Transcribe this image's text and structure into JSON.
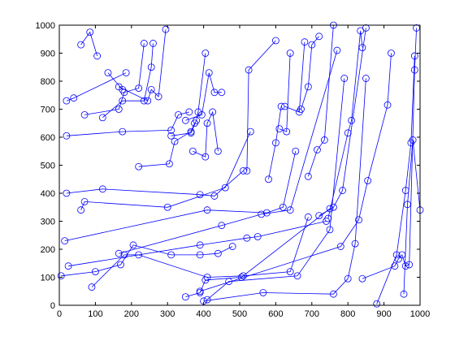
{
  "chart_data": {
    "type": "line",
    "title": "",
    "xlabel": "",
    "ylabel": "",
    "xlim": [
      0,
      1000
    ],
    "ylim": [
      0,
      1000
    ],
    "xticks": [
      "0",
      "100",
      "200",
      "300",
      "400",
      "500",
      "600",
      "700",
      "800",
      "900",
      "1000"
    ],
    "yticks": [
      "0",
      "100",
      "200",
      "300",
      "400",
      "500",
      "600",
      "700",
      "800",
      "900",
      "1000"
    ],
    "grid": false,
    "legend": "none",
    "marker": "open-circle",
    "color": "#0000ff",
    "series": [
      {
        "x": [
          60,
          85,
          105
        ],
        "y": [
          930,
          975,
          890
        ]
      },
      {
        "x": [
          20,
          40,
          185
        ],
        "y": [
          730,
          740,
          830
        ]
      },
      {
        "x": [
          70,
          165,
          180,
          220,
          235
        ],
        "y": [
          680,
          700,
          760,
          775,
          935
        ]
      },
      {
        "x": [
          135,
          175
        ],
        "y": [
          830,
          770
        ]
      },
      {
        "x": [
          120,
          175,
          235,
          255,
          260
        ],
        "y": [
          670,
          730,
          730,
          850,
          935
        ]
      },
      {
        "x": [
          165,
          245,
          255,
          275,
          295
        ],
        "y": [
          780,
          730,
          770,
          745,
          985
        ]
      },
      {
        "x": [
          20,
          175,
          310,
          330,
          360
        ],
        "y": [
          605,
          620,
          625,
          680,
          690
        ]
      },
      {
        "x": [
          220,
          305,
          320,
          365,
          375
        ],
        "y": [
          495,
          505,
          585,
          620,
          650
        ]
      },
      {
        "x": [
          310,
          365,
          380,
          385,
          405
        ],
        "y": [
          605,
          615,
          660,
          690,
          900
        ]
      },
      {
        "x": [
          370,
          405,
          410,
          425,
          440
        ],
        "y": [
          550,
          530,
          650,
          690,
          550
        ]
      },
      {
        "x": [
          350,
          395,
          415,
          430,
          450
        ],
        "y": [
          660,
          680,
          830,
          760,
          760
        ]
      },
      {
        "x": [
          520,
          525,
          600
        ],
        "y": [
          480,
          840,
          945
        ]
      },
      {
        "x": [
          20,
          120,
          390,
          430,
          510
        ],
        "y": [
          400,
          415,
          395,
          390,
          480
        ]
      },
      {
        "x": [
          580,
          600,
          615
        ],
        "y": [
          450,
          580,
          710
        ]
      },
      {
        "x": [
          60,
          70,
          300,
          460,
          530
        ],
        "y": [
          340,
          370,
          350,
          420,
          620
        ]
      },
      {
        "x": [
          610,
          630,
          640
        ],
        "y": [
          630,
          620,
          900
        ]
      },
      {
        "x": [
          625,
          665,
          680
        ],
        "y": [
          710,
          690,
          940
        ]
      },
      {
        "x": [
          15,
          410,
          575,
          620,
          655
        ],
        "y": [
          230,
          340,
          330,
          350,
          550
        ]
      },
      {
        "x": [
          670,
          690,
          700,
          720
        ],
        "y": [
          700,
          780,
          930,
          960
        ]
      },
      {
        "x": [
          690,
          715,
          735,
          760
        ],
        "y": [
          460,
          555,
          590,
          1000
        ]
      },
      {
        "x": [
          720,
          760,
          785,
          850
        ],
        "y": [
          320,
          350,
          410,
          990
        ]
      },
      {
        "x": [
          745,
          800,
          810,
          835,
          840
        ],
        "y": [
          310,
          615,
          660,
          980,
          920
        ]
      },
      {
        "x": [
          25,
          390,
          520,
          550,
          740
        ],
        "y": [
          140,
          215,
          240,
          245,
          300
        ]
      },
      {
        "x": [
          165,
          450,
          560,
          640,
          770
        ],
        "y": [
          185,
          285,
          325,
          340,
          910
        ]
      },
      {
        "x": [
          5,
          100,
          170,
          205,
          310,
          390,
          440,
          480
        ],
        "y": [
          105,
          120,
          145,
          215,
          180,
          180,
          185,
          210
        ]
      },
      {
        "x": [
          90,
          180,
          220,
          410,
          510,
          640,
          690
        ],
        "y": [
          65,
          180,
          180,
          100,
          105,
          120,
          315
        ]
      },
      {
        "x": [
          410,
          470,
          660,
          750,
          790
        ],
        "y": [
          20,
          85,
          105,
          270,
          810
        ]
      },
      {
        "x": [
          350,
          390,
          405,
          505,
          750
        ],
        "y": [
          30,
          45,
          90,
          100,
          345
        ]
      },
      {
        "x": [
          400,
          565,
          760,
          800,
          820,
          850
        ],
        "y": [
          15,
          45,
          40,
          95,
          220,
          810
        ]
      },
      {
        "x": [
          390,
          780,
          830,
          855,
          910,
          920
        ],
        "y": [
          50,
          210,
          305,
          445,
          715,
          900
        ]
      },
      {
        "x": [
          880,
          935,
          960,
          975,
          985
        ],
        "y": [
          5,
          180,
          410,
          580,
          890
        ]
      },
      {
        "x": [
          840,
          930,
          940,
          950,
          960,
          970,
          985,
          990
        ],
        "y": [
          95,
          140,
          165,
          180,
          140,
          145,
          840,
          990
        ]
      },
      {
        "x": [
          955,
          965,
          980,
          1000
        ],
        "y": [
          40,
          360,
          590,
          340
        ]
      }
    ]
  }
}
